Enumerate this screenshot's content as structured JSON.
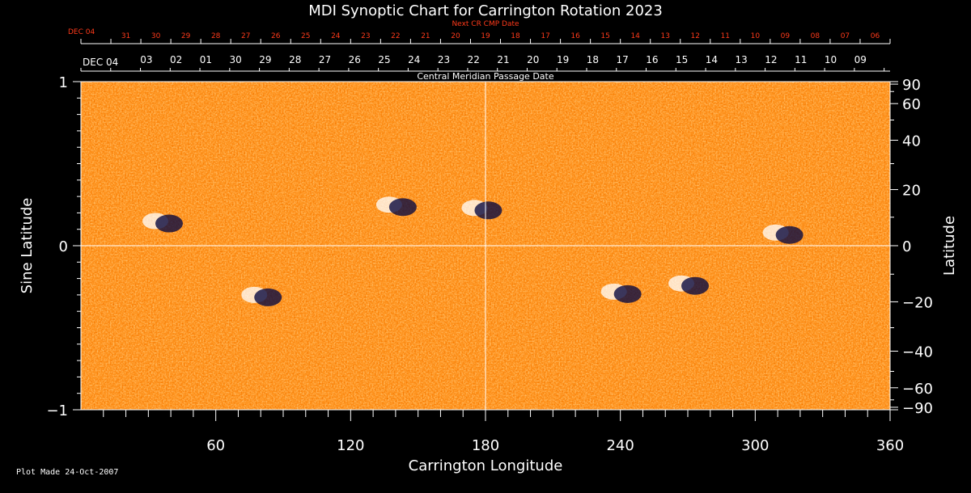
{
  "chart_data": {
    "type": "heatmap",
    "title": "MDI Synoptic Chart for Carrington Rotation 2023",
    "next_cr_label": "Next CR CMP Date",
    "next_cr_first": "DEC 04",
    "next_cr_dates": [
      "31",
      "30",
      "29",
      "28",
      "27",
      "26",
      "25",
      "24",
      "23",
      "22",
      "21",
      "20",
      "19",
      "18",
      "17",
      "16",
      "15",
      "14",
      "13",
      "12",
      "11",
      "10",
      "09",
      "08",
      "07",
      "06"
    ],
    "cmp_first": "DEC 04",
    "cmp_dates": [
      "03",
      "02",
      "01",
      "30",
      "29",
      "28",
      "27",
      "26",
      "25",
      "24",
      "23",
      "22",
      "21",
      "20",
      "19",
      "18",
      "17",
      "16",
      "15",
      "14",
      "13",
      "12",
      "11",
      "10",
      "09"
    ],
    "cmp_label": "Central Meridian Passage Date",
    "xlabel": "Carrington Longitude",
    "ylabel_left": "Sine Latitude",
    "ylabel_right": "Latitude",
    "x_range": [
      0,
      360
    ],
    "x_ticks": [
      "60",
      "120",
      "180",
      "240",
      "300",
      "360"
    ],
    "y_left_ticks": [
      "1",
      "0",
      "−1"
    ],
    "y_right_ticks": [
      "90",
      "60",
      "40",
      "20",
      "0",
      "−20",
      "−40",
      "−60",
      "−90"
    ],
    "y_range_sine": [
      -1,
      1
    ],
    "crosshair": {
      "longitude": 180,
      "sine_latitude": 0
    },
    "colors": {
      "background": "#ff4500",
      "positive": "#ffffff",
      "negative": "#0a0a40",
      "accent_text": "#ff3a1a"
    },
    "active_regions": [
      {
        "lon": 36,
        "sinlat": 0.15,
        "polarity": "mixed"
      },
      {
        "lon": 80,
        "sinlat": -0.3,
        "polarity": "mixed"
      },
      {
        "lon": 140,
        "sinlat": 0.25,
        "polarity": "mixed"
      },
      {
        "lon": 178,
        "sinlat": 0.23,
        "polarity": "mixed"
      },
      {
        "lon": 240,
        "sinlat": -0.28,
        "polarity": "mixed"
      },
      {
        "lon": 270,
        "sinlat": -0.23,
        "polarity": "mixed"
      },
      {
        "lon": 312,
        "sinlat": 0.08,
        "polarity": "mixed"
      }
    ]
  },
  "footer": "Plot Made 24-Oct-2007"
}
